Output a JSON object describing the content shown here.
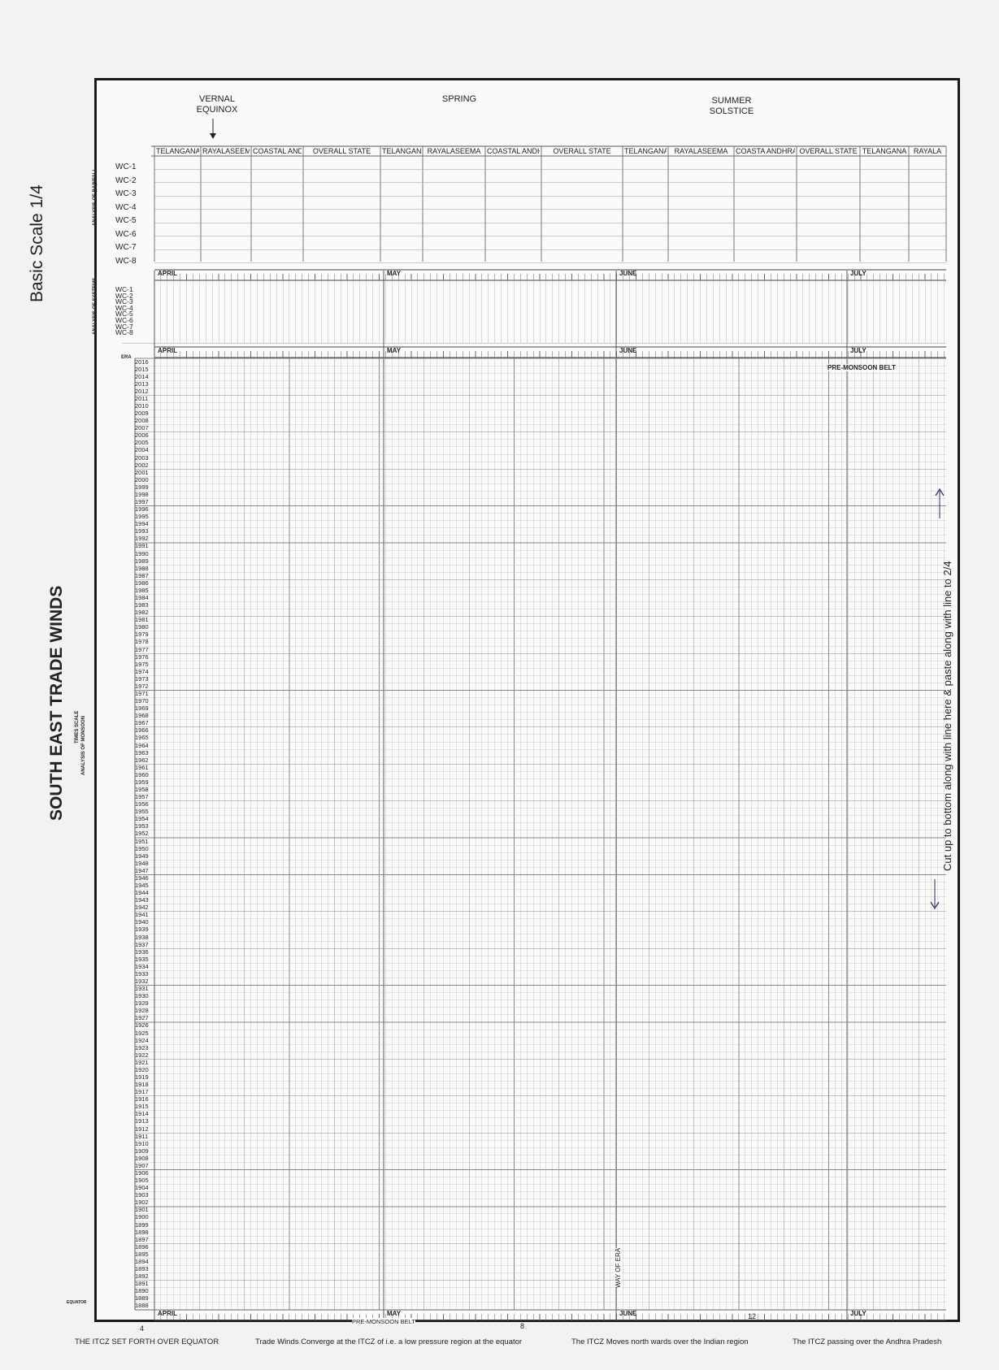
{
  "page": {
    "scale_label": "Basic Scale 1/4",
    "main_title": "SOUTH EAST TRADE WINDS",
    "times_scale": "TIMES SCALE",
    "analysis_monsoon": "ANALYSIS OF MONSOON",
    "analysis_rainfall": "ANALYSIS OF RAINFALL",
    "analysis_systems": "ANALYSIS OF SYSTEMS",
    "era_label": "ERA",
    "equator_label": "EQUATOR",
    "cut_note": "Cut up to bottom along with line here & paste along with line to 2/4"
  },
  "seasons": {
    "vernal_1": "VERNAL",
    "vernal_2": "EQUINOX",
    "spring": "SPRING",
    "summer_1": "SUMMER",
    "summer_2": "SOLSTICE"
  },
  "regions": [
    "TELANGANA",
    "RAYALASEEMA",
    "COASTAL ANDHRA",
    "OVERALL STATE",
    "TELANGANA",
    "RAYALASEEMA",
    "COASTAL ANDHRA",
    "OVERALL STATE",
    "TELANGANA",
    "RAYALASEEMA",
    "COASTA ANDHRA",
    "OVERALL STATE",
    "TELANGANA",
    "RAYALA"
  ],
  "wc_labels": [
    "WC-1",
    "WC-2",
    "WC-3",
    "WC-4",
    "WC-5",
    "WC-6",
    "WC-7",
    "WC-8"
  ],
  "months": [
    "APRIL",
    "MAY",
    "JUNE",
    "JULY"
  ],
  "annotations": {
    "pre_monsoon_belt": "PRE-MONSOON BELT",
    "way_of_era": "WAY OF ERA",
    "bottom_4": "4",
    "bottom_8": "8",
    "bottom_12": "12"
  },
  "years_top": "2016",
  "years_bottom": "1888",
  "footer": [
    "THE ITCZ SET FORTH OVER EQUATOR",
    "Trade Winds Converge at the ITCZ of i.e. a low pressure region at the equator",
    "The ITCZ Moves north wards over the Indian region",
    "The ITCZ passing over the Andhra Pradesh"
  ]
}
